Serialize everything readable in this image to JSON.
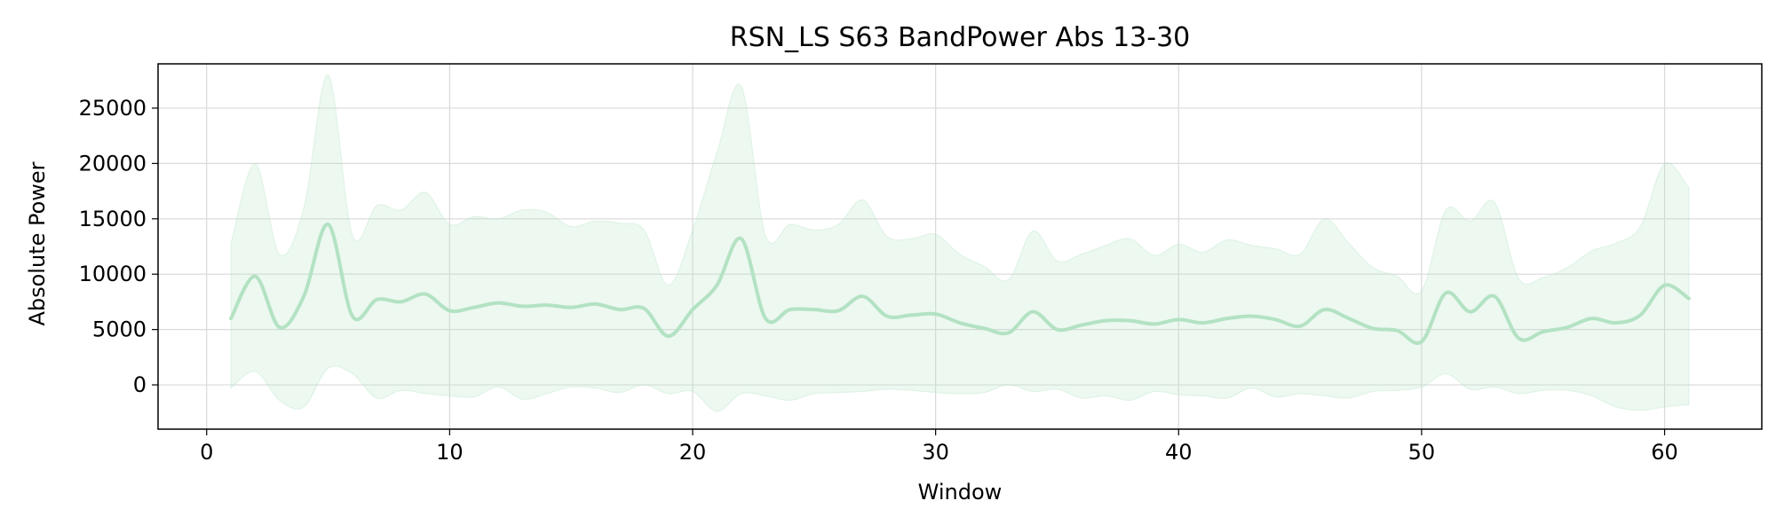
{
  "chart_data": {
    "type": "line",
    "title": "RSN_LS S63 BandPower Abs 13-30",
    "xlabel": "Window",
    "ylabel": "Absolute Power",
    "xlim": [
      -2,
      64
    ],
    "ylim": [
      -4000,
      29000
    ],
    "x_ticks": [
      0,
      10,
      20,
      30,
      40,
      50,
      60
    ],
    "y_ticks": [
      0,
      5000,
      10000,
      15000,
      20000,
      25000
    ],
    "grid": true,
    "line_color": "#b3e2c3",
    "band_color": "#b3e2c3",
    "series": [
      {
        "x": [
          1,
          2,
          3,
          4,
          5,
          6,
          7,
          8,
          9,
          10,
          11,
          12,
          13,
          14,
          15,
          16,
          17,
          18,
          19,
          20,
          21,
          22,
          23,
          24,
          25,
          26,
          27,
          28,
          29,
          30,
          31,
          32,
          33,
          34,
          35,
          36,
          37,
          38,
          39,
          40,
          41,
          42,
          43,
          44,
          45,
          46,
          47,
          48,
          49,
          50,
          51,
          52,
          53,
          54,
          55,
          56,
          57,
          58,
          59,
          60,
          61
        ],
        "y": [
          6000,
          9800,
          5200,
          8000,
          14500,
          6200,
          7700,
          7500,
          8200,
          6700,
          7000,
          7400,
          7100,
          7200,
          7000,
          7300,
          6800,
          6900,
          4400,
          6800,
          9000,
          13200,
          6000,
          6800,
          6800,
          6700,
          8000,
          6200,
          6300,
          6400,
          5600,
          5100,
          4700,
          6600,
          5000,
          5400,
          5800,
          5800,
          5500,
          5900,
          5600,
          6000,
          6200,
          5900,
          5300,
          6800,
          6000,
          5100,
          4900,
          3900,
          8300,
          6600,
          8000,
          4200,
          4800,
          5200,
          6000,
          5600,
          6300,
          9000,
          7800
        ],
        "upper": [
          12800,
          20000,
          11800,
          16000,
          28000,
          13500,
          16200,
          15800,
          17400,
          14500,
          15200,
          15000,
          15800,
          15600,
          14300,
          14800,
          14600,
          14000,
          9000,
          14000,
          21000,
          27000,
          13500,
          14500,
          14000,
          14500,
          16700,
          13400,
          13200,
          13600,
          11800,
          10700,
          9500,
          13900,
          11200,
          11800,
          12600,
          13200,
          11700,
          12700,
          12000,
          13100,
          12600,
          12300,
          11800,
          15000,
          12800,
          10600,
          9800,
          8500,
          15800,
          14800,
          16500,
          9600,
          9700,
          10600,
          12100,
          12800,
          14300,
          20000,
          17800
        ],
        "lower": [
          -300,
          1200,
          -1400,
          -2000,
          1500,
          1000,
          -1200,
          -500,
          -800,
          -1000,
          -1100,
          -200,
          -1300,
          -800,
          -200,
          -300,
          -700,
          0,
          -800,
          -600,
          -2400,
          -800,
          -1000,
          -1400,
          -800,
          -700,
          -600,
          -400,
          -500,
          -700,
          -800,
          -700,
          0,
          -600,
          -400,
          -1200,
          -1000,
          -1400,
          -600,
          -900,
          -1000,
          -1200,
          -300,
          -1100,
          -800,
          -1000,
          -1200,
          -600,
          -500,
          -200,
          1000,
          -400,
          -200,
          -800,
          -500,
          -500,
          -1000,
          -2000,
          -2300,
          -2000,
          -1800
        ]
      }
    ]
  }
}
